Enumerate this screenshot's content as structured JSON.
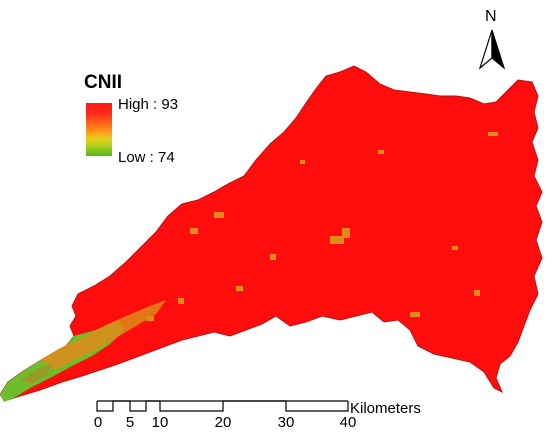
{
  "legend": {
    "title": "CNII",
    "high_label": "High : 93",
    "low_label": "Low : 74",
    "colors": {
      "high": "#ff1a1a",
      "mid": "#ff8a1a",
      "low": "#56b41c"
    }
  },
  "north_arrow": {
    "label": "N",
    "icon": "north-arrow-icon"
  },
  "scale_bar": {
    "unit": "Kilometers",
    "ticks": [
      "0",
      "5",
      "10",
      "20",
      "30",
      "40"
    ]
  },
  "map_colors": {
    "basin": "#ff0d0d",
    "edge": "#c81818",
    "green": "#6cbf2a",
    "orange": "#e08a1a",
    "olive": "#9a9a2a"
  }
}
